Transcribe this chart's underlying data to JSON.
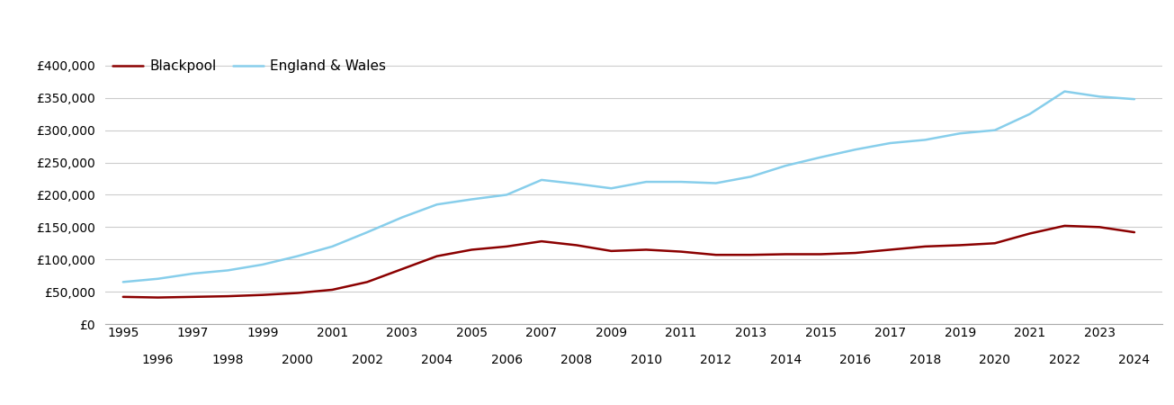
{
  "blackpool": {
    "years": [
      1995,
      1996,
      1997,
      1998,
      1999,
      2000,
      2001,
      2002,
      2003,
      2004,
      2005,
      2006,
      2007,
      2008,
      2009,
      2010,
      2011,
      2012,
      2013,
      2014,
      2015,
      2016,
      2017,
      2018,
      2019,
      2020,
      2021,
      2022,
      2023,
      2024
    ],
    "values": [
      42000,
      41000,
      42000,
      43000,
      45000,
      48000,
      53000,
      65000,
      85000,
      105000,
      115000,
      120000,
      128000,
      122000,
      113000,
      115000,
      112000,
      107000,
      107000,
      108000,
      108000,
      110000,
      115000,
      120000,
      122000,
      125000,
      140000,
      152000,
      150000,
      142000
    ]
  },
  "england_wales": {
    "years": [
      1995,
      1996,
      1997,
      1998,
      1999,
      2000,
      2001,
      2002,
      2003,
      2004,
      2005,
      2006,
      2007,
      2008,
      2009,
      2010,
      2011,
      2012,
      2013,
      2014,
      2015,
      2016,
      2017,
      2018,
      2019,
      2020,
      2021,
      2022,
      2023,
      2024
    ],
    "values": [
      65000,
      70000,
      78000,
      83000,
      92000,
      105000,
      120000,
      142000,
      165000,
      185000,
      193000,
      200000,
      223000,
      217000,
      210000,
      220000,
      220000,
      218000,
      228000,
      245000,
      258000,
      270000,
      280000,
      285000,
      295000,
      300000,
      325000,
      360000,
      352000,
      348000
    ]
  },
  "blackpool_color": "#8B0000",
  "england_wales_color": "#87CEEB",
  "background_color": "#ffffff",
  "grid_color": "#cccccc",
  "ylim": [
    0,
    420000
  ],
  "yticks": [
    0,
    50000,
    100000,
    150000,
    200000,
    250000,
    300000,
    350000,
    400000
  ],
  "xlim": [
    1994.5,
    2024.8
  ],
  "legend_labels": [
    "Blackpool",
    "England & Wales"
  ],
  "line_width": 1.8,
  "odd_years": [
    1995,
    1997,
    1999,
    2001,
    2003,
    2005,
    2007,
    2009,
    2011,
    2013,
    2015,
    2017,
    2019,
    2021,
    2023
  ],
  "even_years": [
    1996,
    1998,
    2000,
    2002,
    2004,
    2006,
    2008,
    2010,
    2012,
    2014,
    2016,
    2018,
    2020,
    2022,
    2024
  ]
}
